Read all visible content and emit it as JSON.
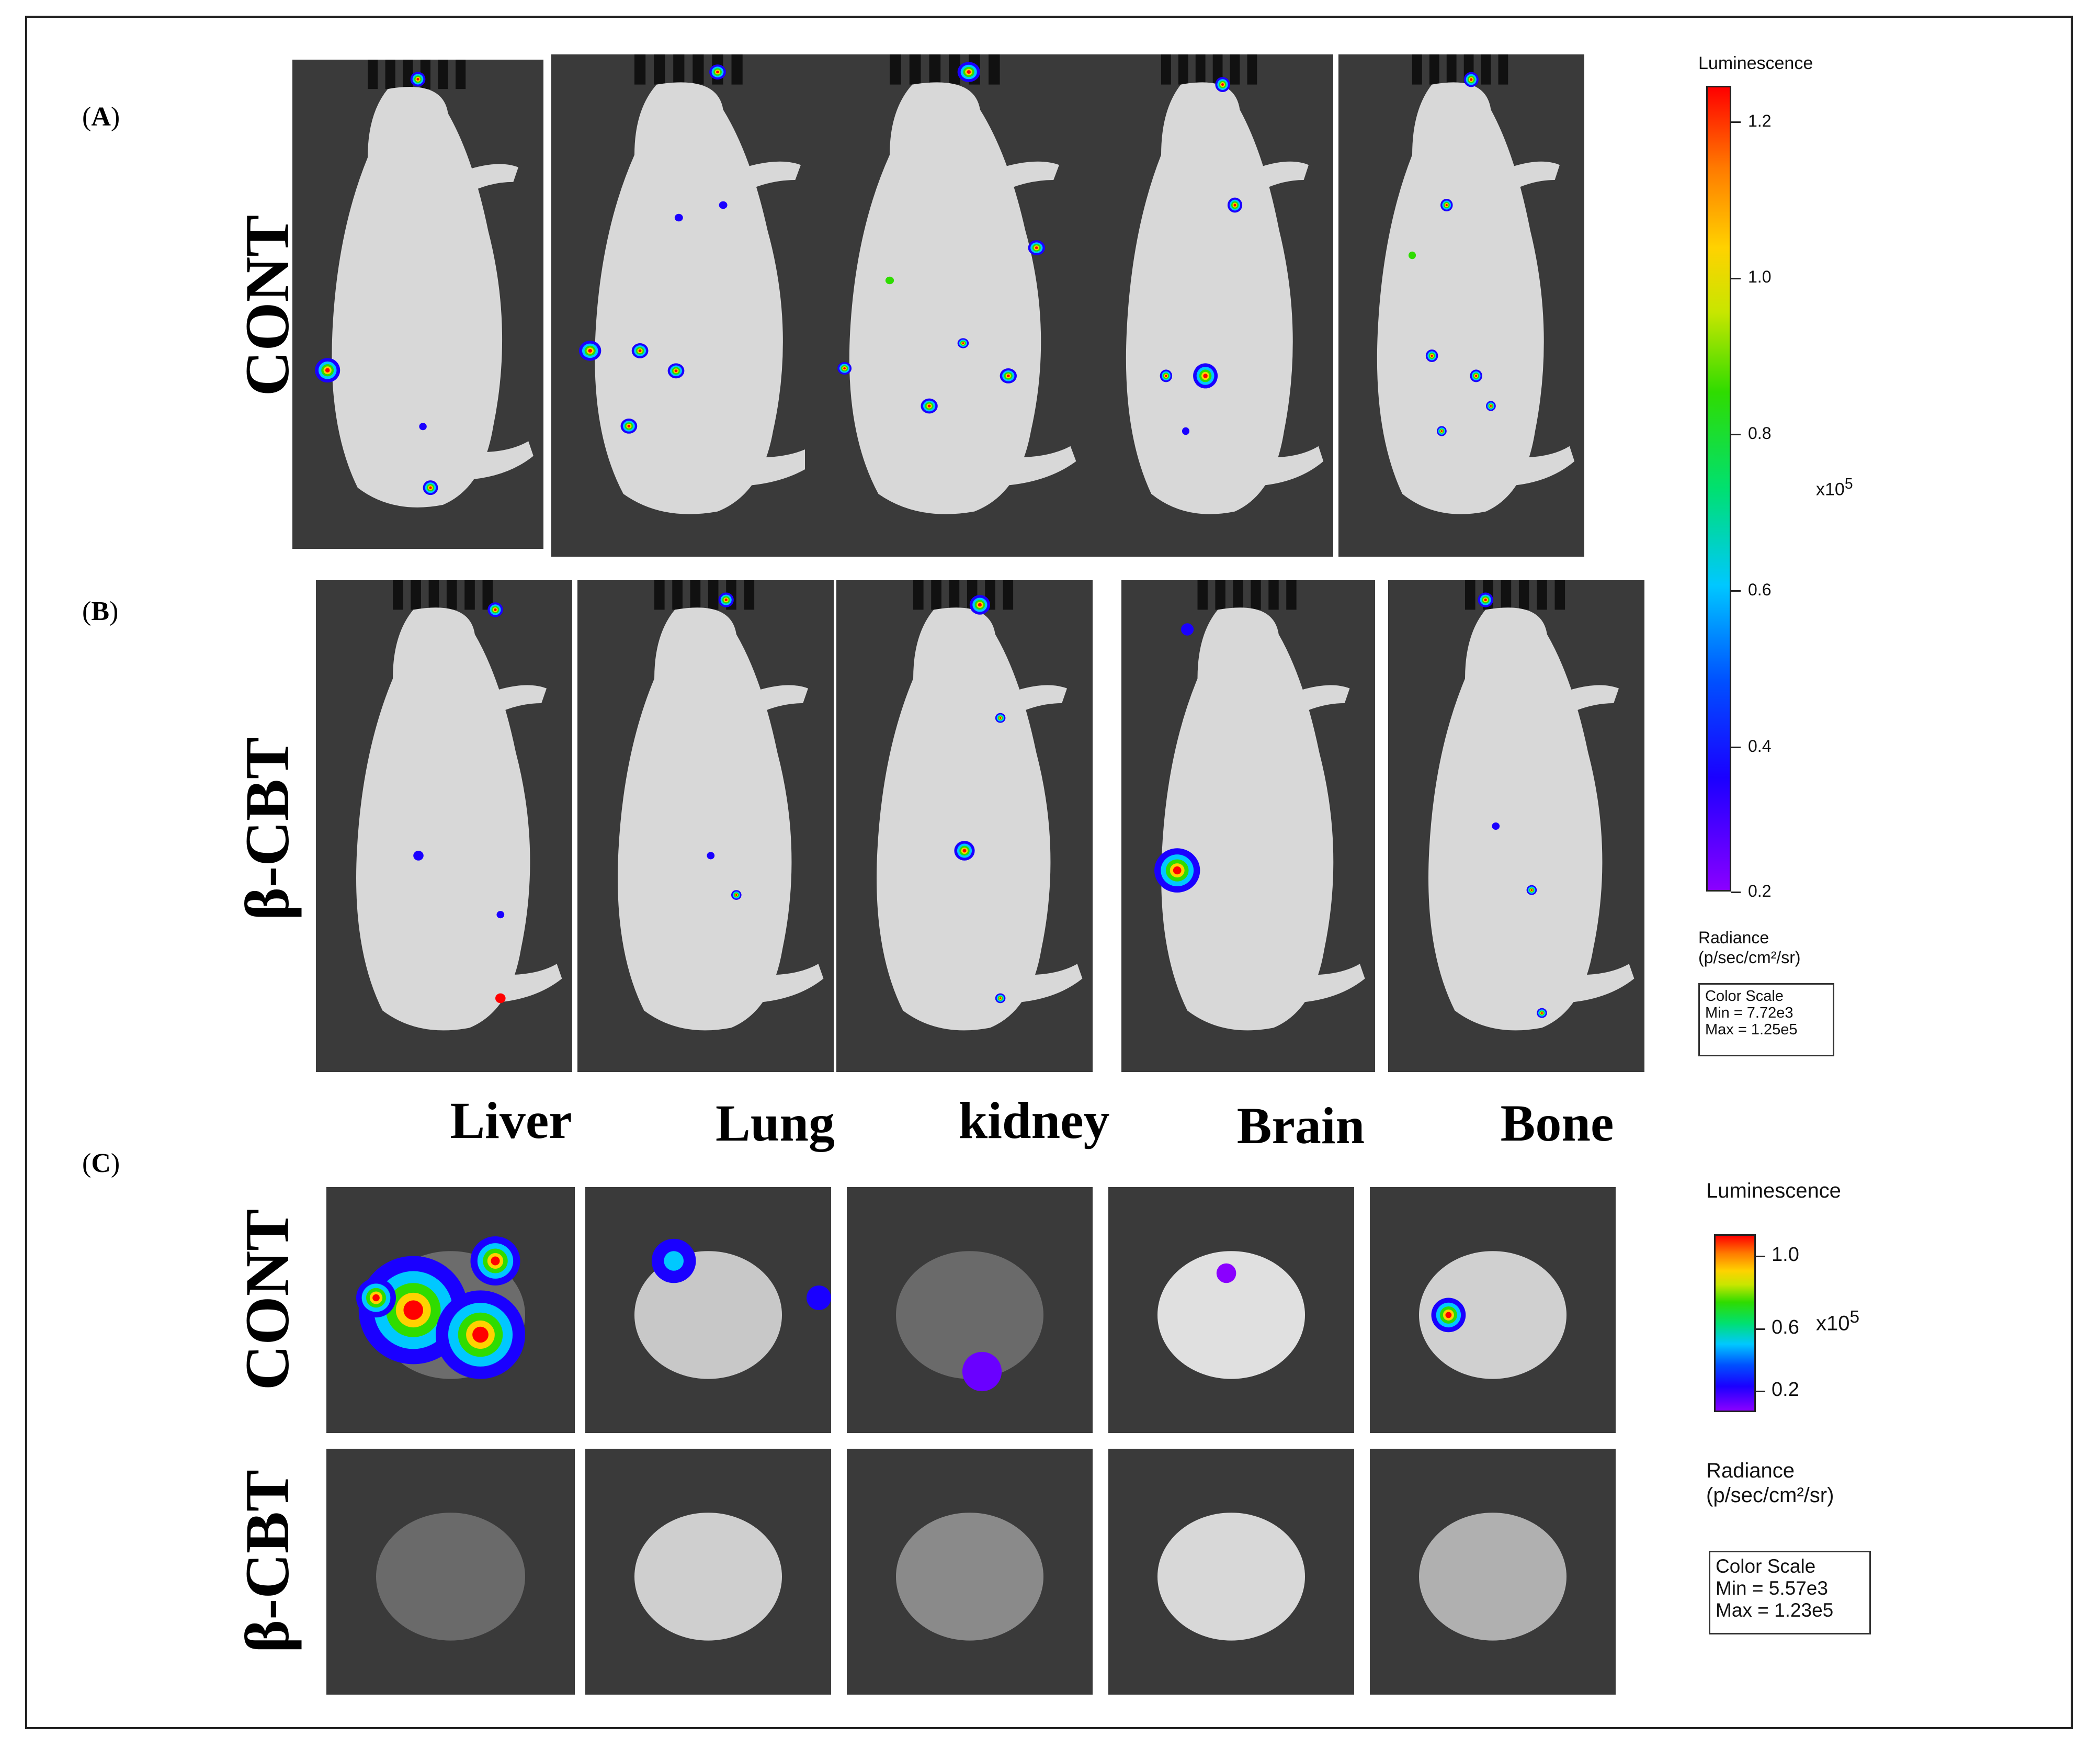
{
  "panels": {
    "a": {
      "letter": "A",
      "row_label": "CONT"
    },
    "b": {
      "letter": "B",
      "row_label": "β-CBT"
    },
    "c": {
      "letter": "C",
      "organs": [
        "Liver",
        "Lung",
        "kidney",
        "Brain",
        "Bone"
      ],
      "row_labels": [
        "CONT",
        "β-CBT"
      ]
    }
  },
  "scale_whole_body": {
    "title": "Luminescence",
    "ticks": [
      "1.2",
      "1.0",
      "0.8",
      "0.6",
      "0.4",
      "0.2"
    ],
    "exponent": "x10",
    "exponent_power": "5",
    "unit_title": "Radiance",
    "unit": "(p/sec/cm²/sr)",
    "color_scale": "Color Scale",
    "min": "Min = 7.72e3",
    "max": "Max = 1.25e5"
  },
  "scale_organs": {
    "title": "Luminescence",
    "ticks": [
      "1.0",
      "0.6",
      "0.2"
    ],
    "exponent": "x10",
    "exponent_power": "5",
    "unit_title": "Radiance",
    "unit": "(p/sec/cm²/sr)",
    "color_scale": "Color Scale",
    "min": "Min = 5.57e3",
    "max": "Max = 1.23e5"
  },
  "colors": {
    "frame": "#222222",
    "tile_bg": "#3a3a3a",
    "mouse_body": "#d8d8d8",
    "signal_high": "#ff0000",
    "signal_mid": "#2fdc00",
    "signal_low": "#1a00ff"
  }
}
